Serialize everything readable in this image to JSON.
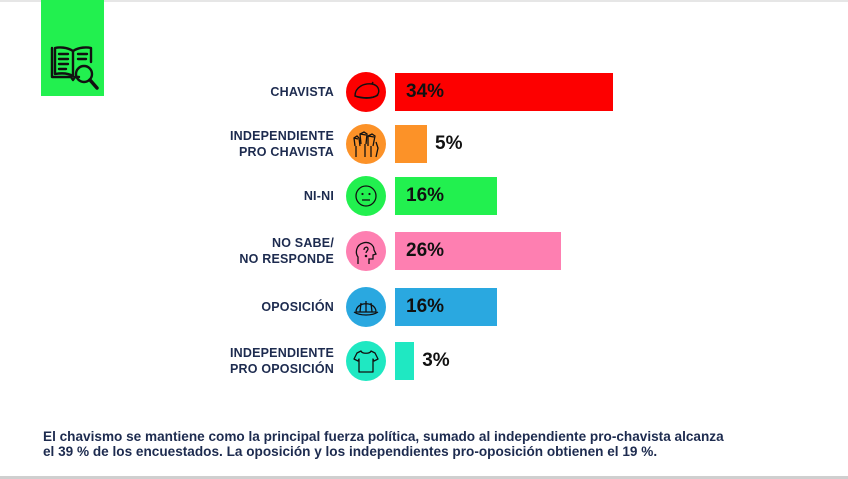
{
  "logo": {
    "icon": "book-magnifier-icon",
    "bg_color": "#22f04f"
  },
  "chart_data": {
    "type": "bar",
    "orientation": "horizontal",
    "categories": [
      [
        "CHAVISTA"
      ],
      [
        "INDEPENDIENTE",
        "PRO CHAVISTA"
      ],
      [
        "NI-NI"
      ],
      [
        "NO SABE/",
        "NO RESPONDE"
      ],
      [
        "OPOSICIÓN"
      ],
      [
        "INDEPENDIENTE",
        "PRO OPOSICIÓN"
      ]
    ],
    "values": [
      34,
      5,
      16,
      26,
      16,
      3
    ],
    "value_labels": [
      "34%",
      "5%",
      "16%",
      "26%",
      "16%",
      "3%"
    ],
    "colors": [
      "#fd0000",
      "#fc9228",
      "#22f04f",
      "#fe7fb1",
      "#2aa8e0",
      "#1fe8c2"
    ],
    "icons": [
      "beret-icon",
      "raised-fists-icon",
      "neutral-face-icon",
      "question-head-icon",
      "cap-icon",
      "tshirt-icon"
    ],
    "xlim": [
      0,
      100
    ],
    "grid": false,
    "legend": "none"
  },
  "footer": {
    "line1": "El chavismo se mantiene como la principal fuerza política, sumado al independiente pro-chavista alcanza",
    "line2": "el 39 % de los encuestados. La oposición y los independientes pro-oposición obtienen el 19 %."
  }
}
